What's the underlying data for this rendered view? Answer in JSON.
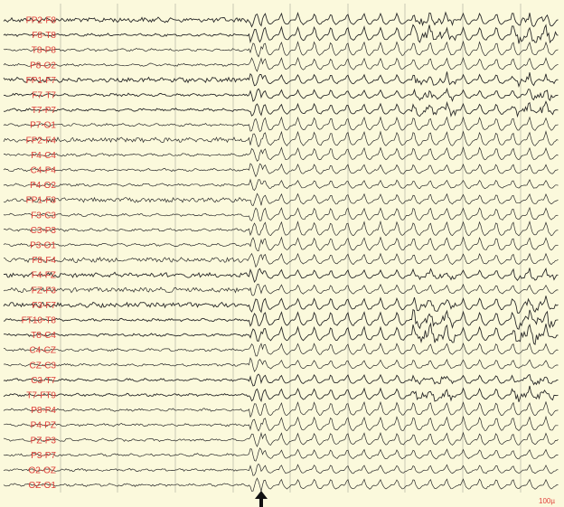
{
  "recording": {
    "channels": [
      "FP2-F8",
      "F8-T8",
      "T8-P8",
      "P8-O2",
      "FP1-F7",
      "F7-T7",
      "T7-P7",
      "P7-O1",
      "FP2-F4",
      "F4-C4",
      "C4-P4",
      "P4-O2",
      "FP1-F3",
      "F3-C3",
      "C3-P3",
      "P3-O1",
      "F8-F4",
      "F4-FZ",
      "FZ-F3",
      "F3-F7",
      "FT10-T8",
      "T8-C4",
      "C4-CZ",
      "CZ-C3",
      "C3-T7",
      "T7-FT9",
      "P8-P4",
      "P4-PZ",
      "PZ-P3",
      "P3-P7",
      "O2-OZ",
      "OZ-O1"
    ],
    "scale_label": "100µ",
    "onset_marker": "arrow-up-icon",
    "colors": {
      "background": "#fbf9dc",
      "grid": "#c9c9b4",
      "trace": "#2a2a2a",
      "label": "#e0403a"
    }
  }
}
